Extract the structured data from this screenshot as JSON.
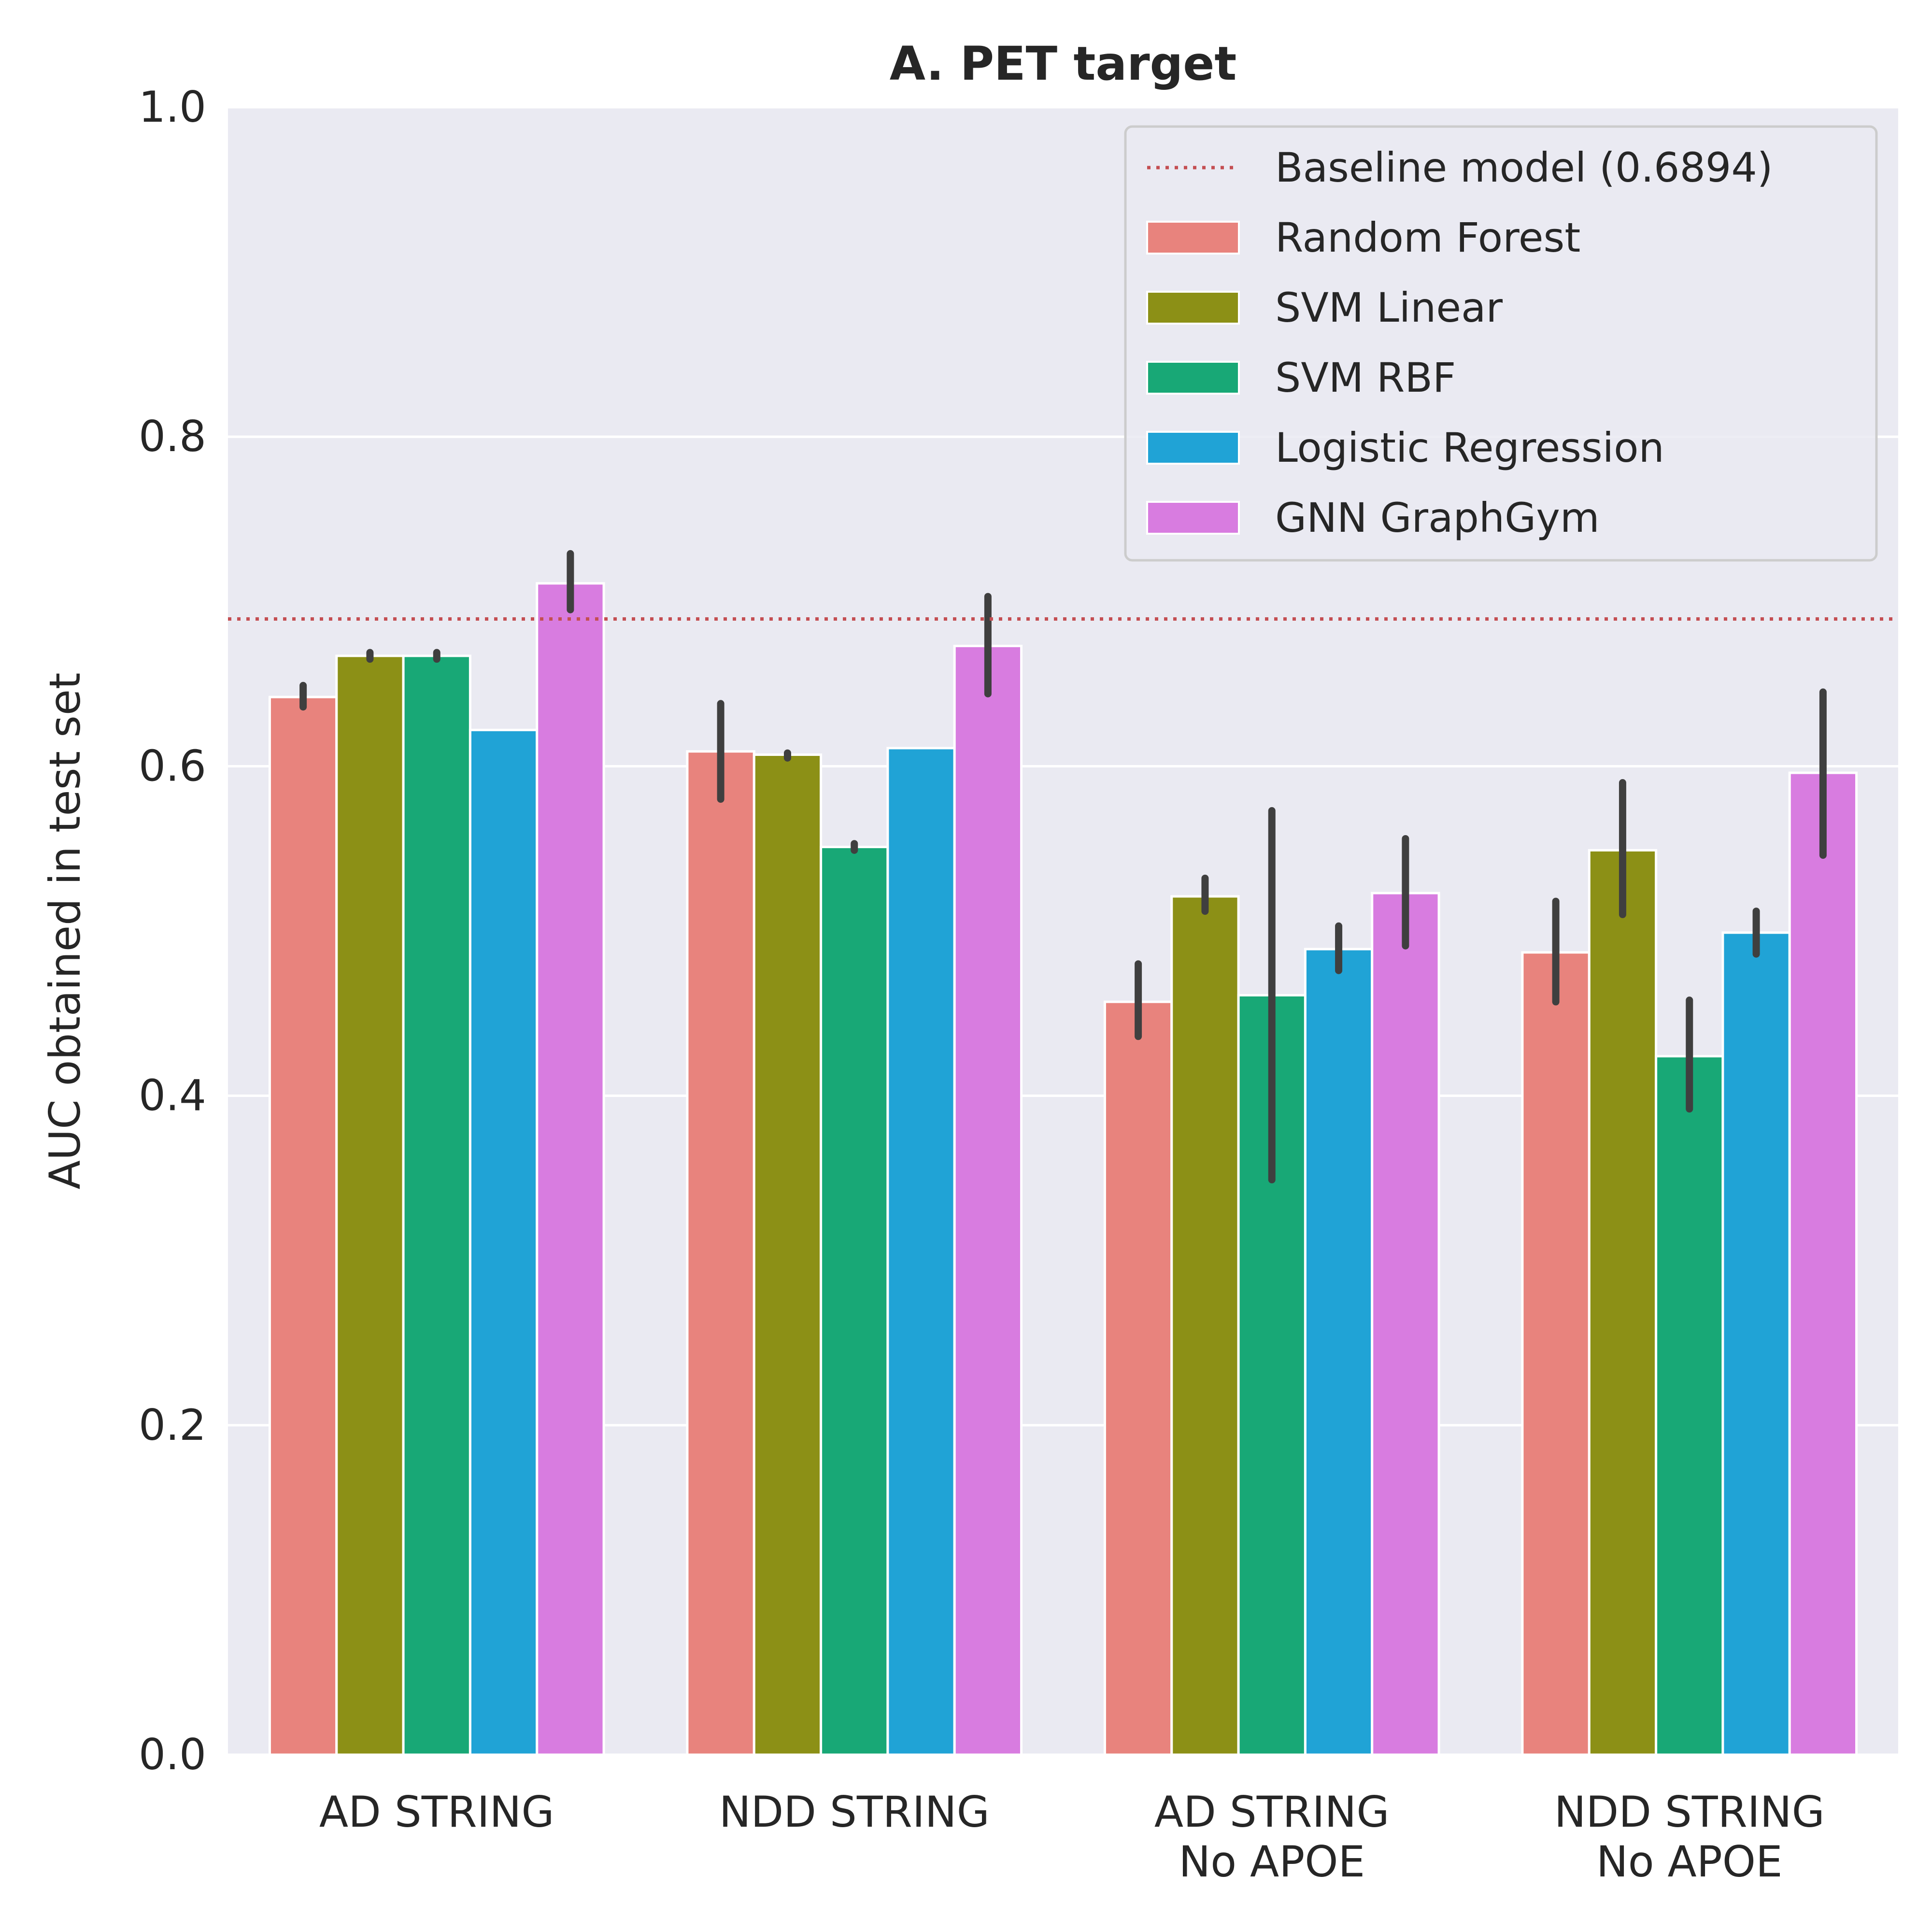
{
  "chart_data": {
    "type": "bar",
    "title": "A. PET target",
    "xlabel": "",
    "ylabel": "AUC obtained in test set",
    "ylim": [
      0,
      1.0
    ],
    "yticks": [
      "0.0",
      "0.2",
      "0.4",
      "0.6",
      "0.8",
      "1.0"
    ],
    "grid": true,
    "legend_position": "top-right",
    "categories": [
      [
        "AD STRING"
      ],
      [
        "NDD STRING"
      ],
      [
        "AD STRING",
        "No APOE"
      ],
      [
        "NDD STRING",
        "No APOE"
      ]
    ],
    "baseline": {
      "name": "Baseline model (0.6894)",
      "value": 0.6894,
      "color": "#c44e52"
    },
    "series": [
      {
        "name": "Random Forest",
        "color": "#e8837d",
        "values": [
          0.642,
          0.609,
          0.457,
          0.487
        ],
        "err_low": [
          0.636,
          0.58,
          0.436,
          0.457
        ],
        "err_high": [
          0.649,
          0.638,
          0.48,
          0.518
        ]
      },
      {
        "name": "SVM Linear",
        "color": "#8c9016",
        "values": [
          0.667,
          0.607,
          0.521,
          0.549
        ],
        "err_low": [
          0.665,
          0.605,
          0.512,
          0.51
        ],
        "err_high": [
          0.669,
          0.608,
          0.532,
          0.59
        ]
      },
      {
        "name": "SVM RBF",
        "color": "#18a876",
        "values": [
          0.667,
          0.551,
          0.461,
          0.424
        ],
        "err_low": [
          0.665,
          0.549,
          0.349,
          0.392
        ],
        "err_high": [
          0.669,
          0.553,
          0.573,
          0.458
        ]
      },
      {
        "name": "Logistic Regression",
        "color": "#20a3d6",
        "values": [
          0.622,
          0.611,
          0.489,
          0.499
        ],
        "err_low": null,
        "err_high": null,
        "err_low_list": [
          null,
          null,
          0.476,
          0.486
        ],
        "err_high_list": [
          null,
          null,
          0.503,
          0.512
        ]
      },
      {
        "name": "GNN GraphGym",
        "color": "#d87ce0",
        "values": [
          0.711,
          0.673,
          0.523,
          0.596
        ],
        "err_low": [
          0.695,
          0.644,
          0.491,
          0.546
        ],
        "err_high": [
          0.729,
          0.703,
          0.556,
          0.645
        ]
      }
    ]
  }
}
